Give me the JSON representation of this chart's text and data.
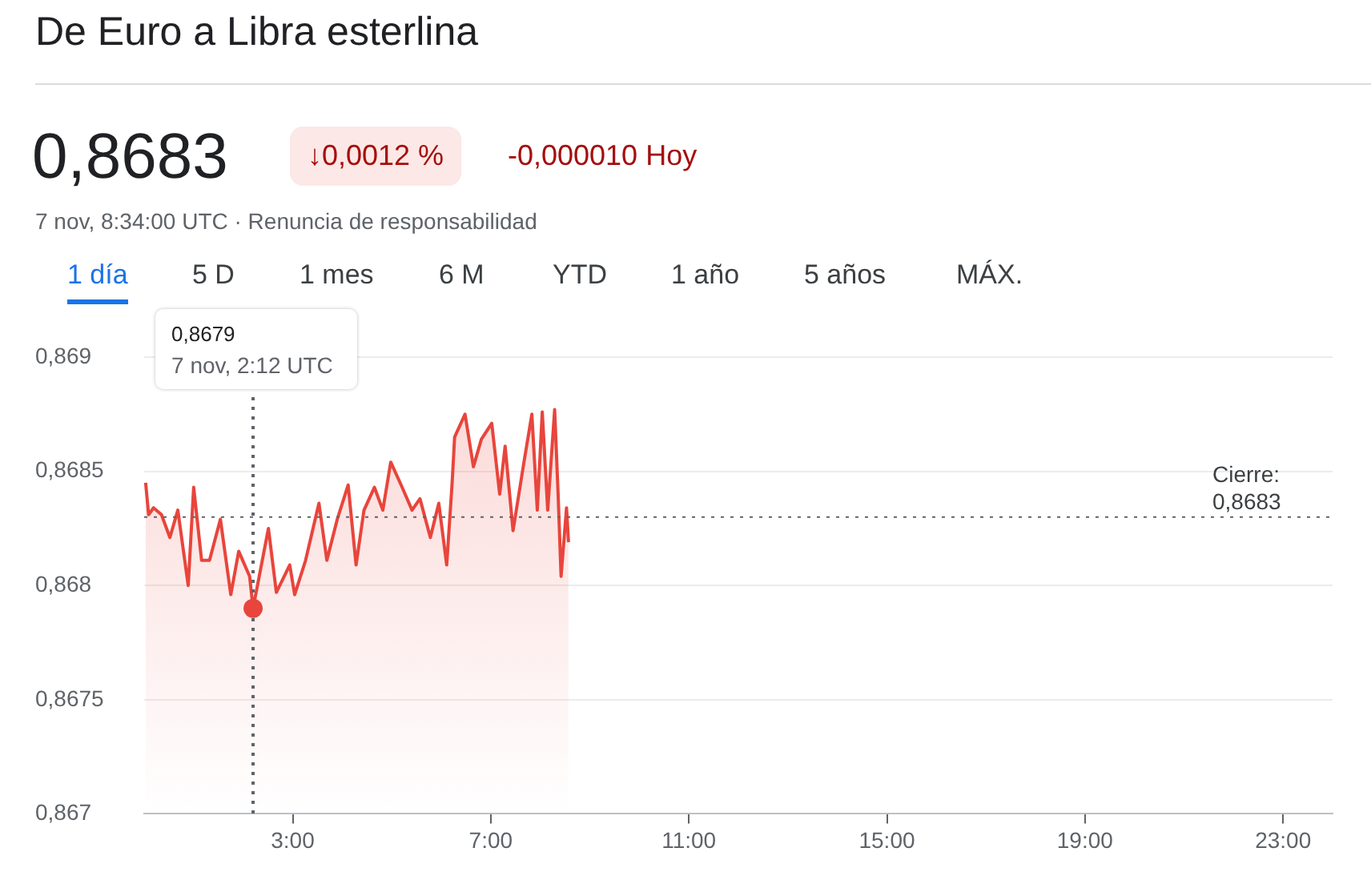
{
  "chart_data": {
    "type": "area",
    "title": "De Euro a Libra esterlina",
    "subtitle": "0,8683",
    "annotations": [
      "↓0,0012 %",
      "-0,000010 Hoy",
      "7 nov, 8:34:00 UTC · Renuncia de responsabilidad",
      "1 día",
      "5 D",
      "1 mes",
      "6 M",
      "YTD",
      "1 año",
      "5 años",
      "MÁX.",
      "0,8679\n7 nov, 2:12 UTC"
    ],
    "x": [
      0.03,
      0.09,
      0.19,
      0.35,
      0.52,
      0.68,
      0.89,
      1.0,
      1.16,
      1.32,
      1.54,
      1.75,
      1.91,
      2.13,
      2.2,
      2.51,
      2.67,
      2.94,
      3.04,
      3.26,
      3.53,
      3.69,
      3.9,
      4.12,
      4.28,
      4.44,
      4.65,
      4.82,
      4.98,
      5.19,
      5.41,
      5.57,
      5.78,
      5.95,
      6.11,
      6.22,
      6.27,
      6.48,
      6.65,
      6.81,
      7.02,
      7.18,
      7.29,
      7.45,
      7.67,
      7.83,
      7.94,
      8.04,
      8.15,
      8.29,
      8.36,
      8.42,
      8.53,
      8.57
    ],
    "series": [
      {
        "color": "#e8453c",
        "values": [
          0.86845,
          0.86831,
          0.86834,
          0.86831,
          0.86821,
          0.86833,
          0.868,
          0.86843,
          0.86811,
          0.86811,
          0.86829,
          0.86796,
          0.86815,
          0.86804,
          0.8679,
          0.86825,
          0.86797,
          0.86809,
          0.86796,
          0.86811,
          0.86836,
          0.86811,
          0.86829,
          0.86844,
          0.86809,
          0.86833,
          0.86843,
          0.86833,
          0.86854,
          0.86844,
          0.86833,
          0.86838,
          0.86821,
          0.86836,
          0.86809,
          0.86845,
          0.86865,
          0.86875,
          0.86852,
          0.86864,
          0.86871,
          0.8684,
          0.86861,
          0.86824,
          0.86854,
          0.86875,
          0.86833,
          0.86876,
          0.86833,
          0.86877,
          0.8684,
          0.86804,
          0.86834,
          0.86819
        ]
      }
    ],
    "xlim": [
      0,
      24
    ],
    "xticks": [
      {
        "value": 3,
        "label": "3:00"
      },
      {
        "value": 7,
        "label": "7:00"
      },
      {
        "value": 11,
        "label": "11:00"
      },
      {
        "value": 15,
        "label": "15:00"
      },
      {
        "value": 19,
        "label": "19:00"
      },
      {
        "value": 23,
        "label": "23:00"
      }
    ],
    "ylim": [
      0.867,
      0.869
    ],
    "yticks": [
      {
        "value": 0.867,
        "label": "0,867"
      },
      {
        "value": 0.8675,
        "label": "0,8675"
      },
      {
        "value": 0.868,
        "label": "0,868"
      },
      {
        "value": 0.8685,
        "label": "0,8685"
      },
      {
        "value": 0.869,
        "label": "0,869"
      }
    ],
    "ref_lines": [
      {
        "axis": "y",
        "value": 0.8683,
        "label": "Cierre:\n0,8683",
        "line_style": "dotted"
      },
      {
        "axis": "x",
        "value": 2.2,
        "label": null,
        "line_style": "dotted"
      }
    ],
    "grid": "y",
    "legend": false,
    "marker": "none",
    "line_style": "solid"
  }
}
